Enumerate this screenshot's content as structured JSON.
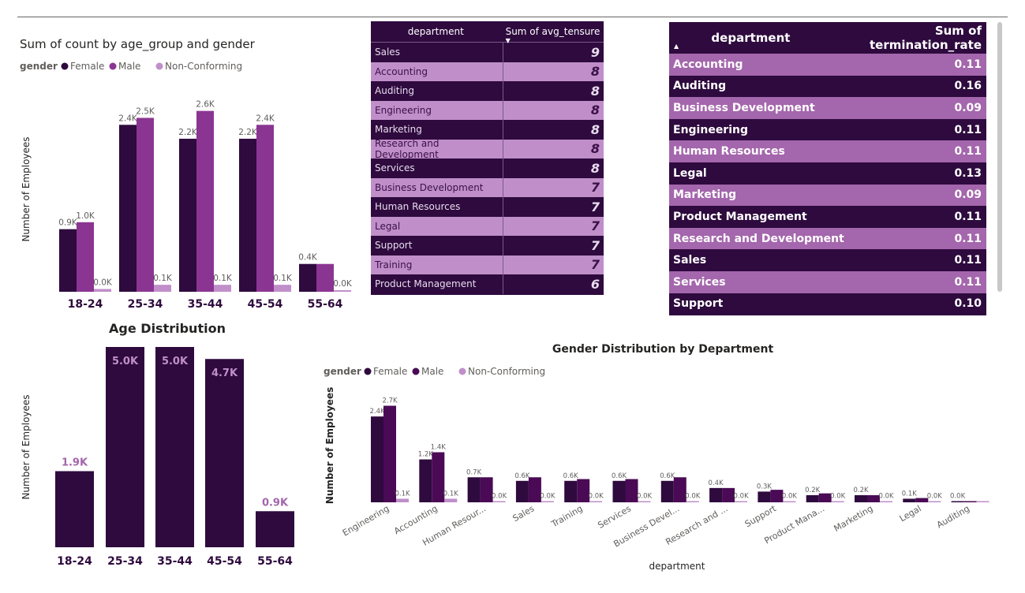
{
  "charts": {
    "age_gender": {
      "title": "Sum of count by age_group and gender",
      "legend_title": "gender",
      "ylabel": "Number of Employees"
    },
    "age_dist": {
      "title": "Age Distribution",
      "ylabel": "Number of Employees"
    },
    "dept_gender": {
      "title": "Gender Distribution by Department",
      "legend_title": "gender",
      "ylabel": "Number of Employees",
      "xlabel": "department"
    }
  },
  "chart_data": [
    {
      "type": "bar",
      "title": "Sum of count by age_group and gender",
      "ylabel": "Number of Employees",
      "categories": [
        "18-24",
        "25-34",
        "35-44",
        "45-54",
        "55-64"
      ],
      "series": [
        {
          "name": "Female",
          "values": [
            0.9,
            2.4,
            2.2,
            2.2,
            0.4
          ],
          "labels": [
            "0.9K",
            "2.4K",
            "2.2K",
            "2.2K",
            "0.4K"
          ],
          "color": "#2e0a3e"
        },
        {
          "name": "Male",
          "values": [
            1.0,
            2.5,
            2.6,
            2.4,
            0.4
          ],
          "labels": [
            "1.0K",
            "2.5K",
            "2.6K",
            "2.4K",
            ""
          ],
          "color": "#8b3592"
        },
        {
          "name": "Non-Conforming",
          "values": [
            0.04,
            0.1,
            0.1,
            0.1,
            0.01
          ],
          "labels": [
            "0.0K",
            "0.1K",
            "0.1K",
            "0.1K",
            "0.0K"
          ],
          "color": "#c08fc9"
        }
      ],
      "ylim": [
        0,
        2.8
      ],
      "legend": "top-left"
    },
    {
      "type": "bar",
      "title": "Age Distribution",
      "ylabel": "Number of Employees",
      "categories": [
        "18-24",
        "25-34",
        "35-44",
        "45-54",
        "55-64"
      ],
      "values": [
        1.9,
        5.0,
        5.0,
        4.7,
        0.9
      ],
      "labels": [
        "1.9K",
        "5.0K",
        "5.0K",
        "4.7K",
        "0.9K"
      ],
      "color": "#2e0a3e",
      "ylim": [
        0,
        5.0
      ]
    },
    {
      "type": "bar",
      "title": "Gender Distribution by Department",
      "xlabel": "department",
      "ylabel": "Number of Employees",
      "categories": [
        "Engineering",
        "Accounting",
        "Human Resour...",
        "Sales",
        "Training",
        "Services",
        "Business Devel...",
        "Research and ...",
        "Support",
        "Product Mana...",
        "Marketing",
        "Legal",
        "Auditing"
      ],
      "series": [
        {
          "name": "Female",
          "values": [
            2.4,
            1.2,
            0.7,
            0.6,
            0.6,
            0.6,
            0.6,
            0.4,
            0.3,
            0.2,
            0.2,
            0.1,
            0.0
          ],
          "labels": [
            "2.4K",
            "1.2K",
            "0.7K",
            "0.6K",
            "0.6K",
            "0.6K",
            "0.6K",
            "0.4K",
            "0.3K",
            "0.2K",
            "0.2K",
            "0.1K",
            "0.0K"
          ],
          "color": "#2e0a3e"
        },
        {
          "name": "Male",
          "values": [
            2.7,
            1.4,
            0.7,
            0.7,
            0.65,
            0.65,
            0.7,
            0.4,
            0.35,
            0.25,
            0.2,
            0.12,
            0.01
          ],
          "labels": [
            "2.7K",
            "1.4K",
            "",
            "",
            "",
            "",
            "",
            "",
            "",
            "",
            "",
            "",
            ""
          ],
          "color": "#4a0a55"
        },
        {
          "name": "Non-Conforming",
          "values": [
            0.1,
            0.1,
            0.02,
            0.02,
            0.02,
            0.02,
            0.02,
            0.02,
            0.02,
            0.02,
            0.01,
            0.01,
            0.0
          ],
          "labels": [
            "0.1K",
            "0.1K",
            "0.0K",
            "0.0K",
            "0.0K",
            "0.0K",
            "0.0K",
            "0.0K",
            "0.0K",
            "0.0K",
            "0.0K",
            "0.0K",
            ""
          ],
          "color": "#c08fc9"
        }
      ],
      "ylim": [
        0,
        2.8
      ],
      "legend": "top-left"
    },
    {
      "type": "table",
      "columns": [
        "department",
        "Sum of avg_tensure"
      ],
      "rows": [
        [
          "Sales",
          "9"
        ],
        [
          "Accounting",
          "8"
        ],
        [
          "Auditing",
          "8"
        ],
        [
          "Engineering",
          "8"
        ],
        [
          "Marketing",
          "8"
        ],
        [
          "Research and Development",
          "8"
        ],
        [
          "Services",
          "8"
        ],
        [
          "Business Development",
          "7"
        ],
        [
          "Human Resources",
          "7"
        ],
        [
          "Legal",
          "7"
        ],
        [
          "Support",
          "7"
        ],
        [
          "Training",
          "7"
        ],
        [
          "Product Management",
          "6"
        ]
      ]
    },
    {
      "type": "table",
      "columns": [
        "department",
        "Sum of termination_rate"
      ],
      "rows": [
        [
          "Accounting",
          "0.11"
        ],
        [
          "Auditing",
          "0.16"
        ],
        [
          "Business Development",
          "0.09"
        ],
        [
          "Engineering",
          "0.11"
        ],
        [
          "Human Resources",
          "0.11"
        ],
        [
          "Legal",
          "0.13"
        ],
        [
          "Marketing",
          "0.09"
        ],
        [
          "Product Management",
          "0.11"
        ],
        [
          "Research and Development",
          "0.11"
        ],
        [
          "Sales",
          "0.11"
        ],
        [
          "Services",
          "0.11"
        ],
        [
          "Support",
          "0.10"
        ]
      ]
    }
  ]
}
